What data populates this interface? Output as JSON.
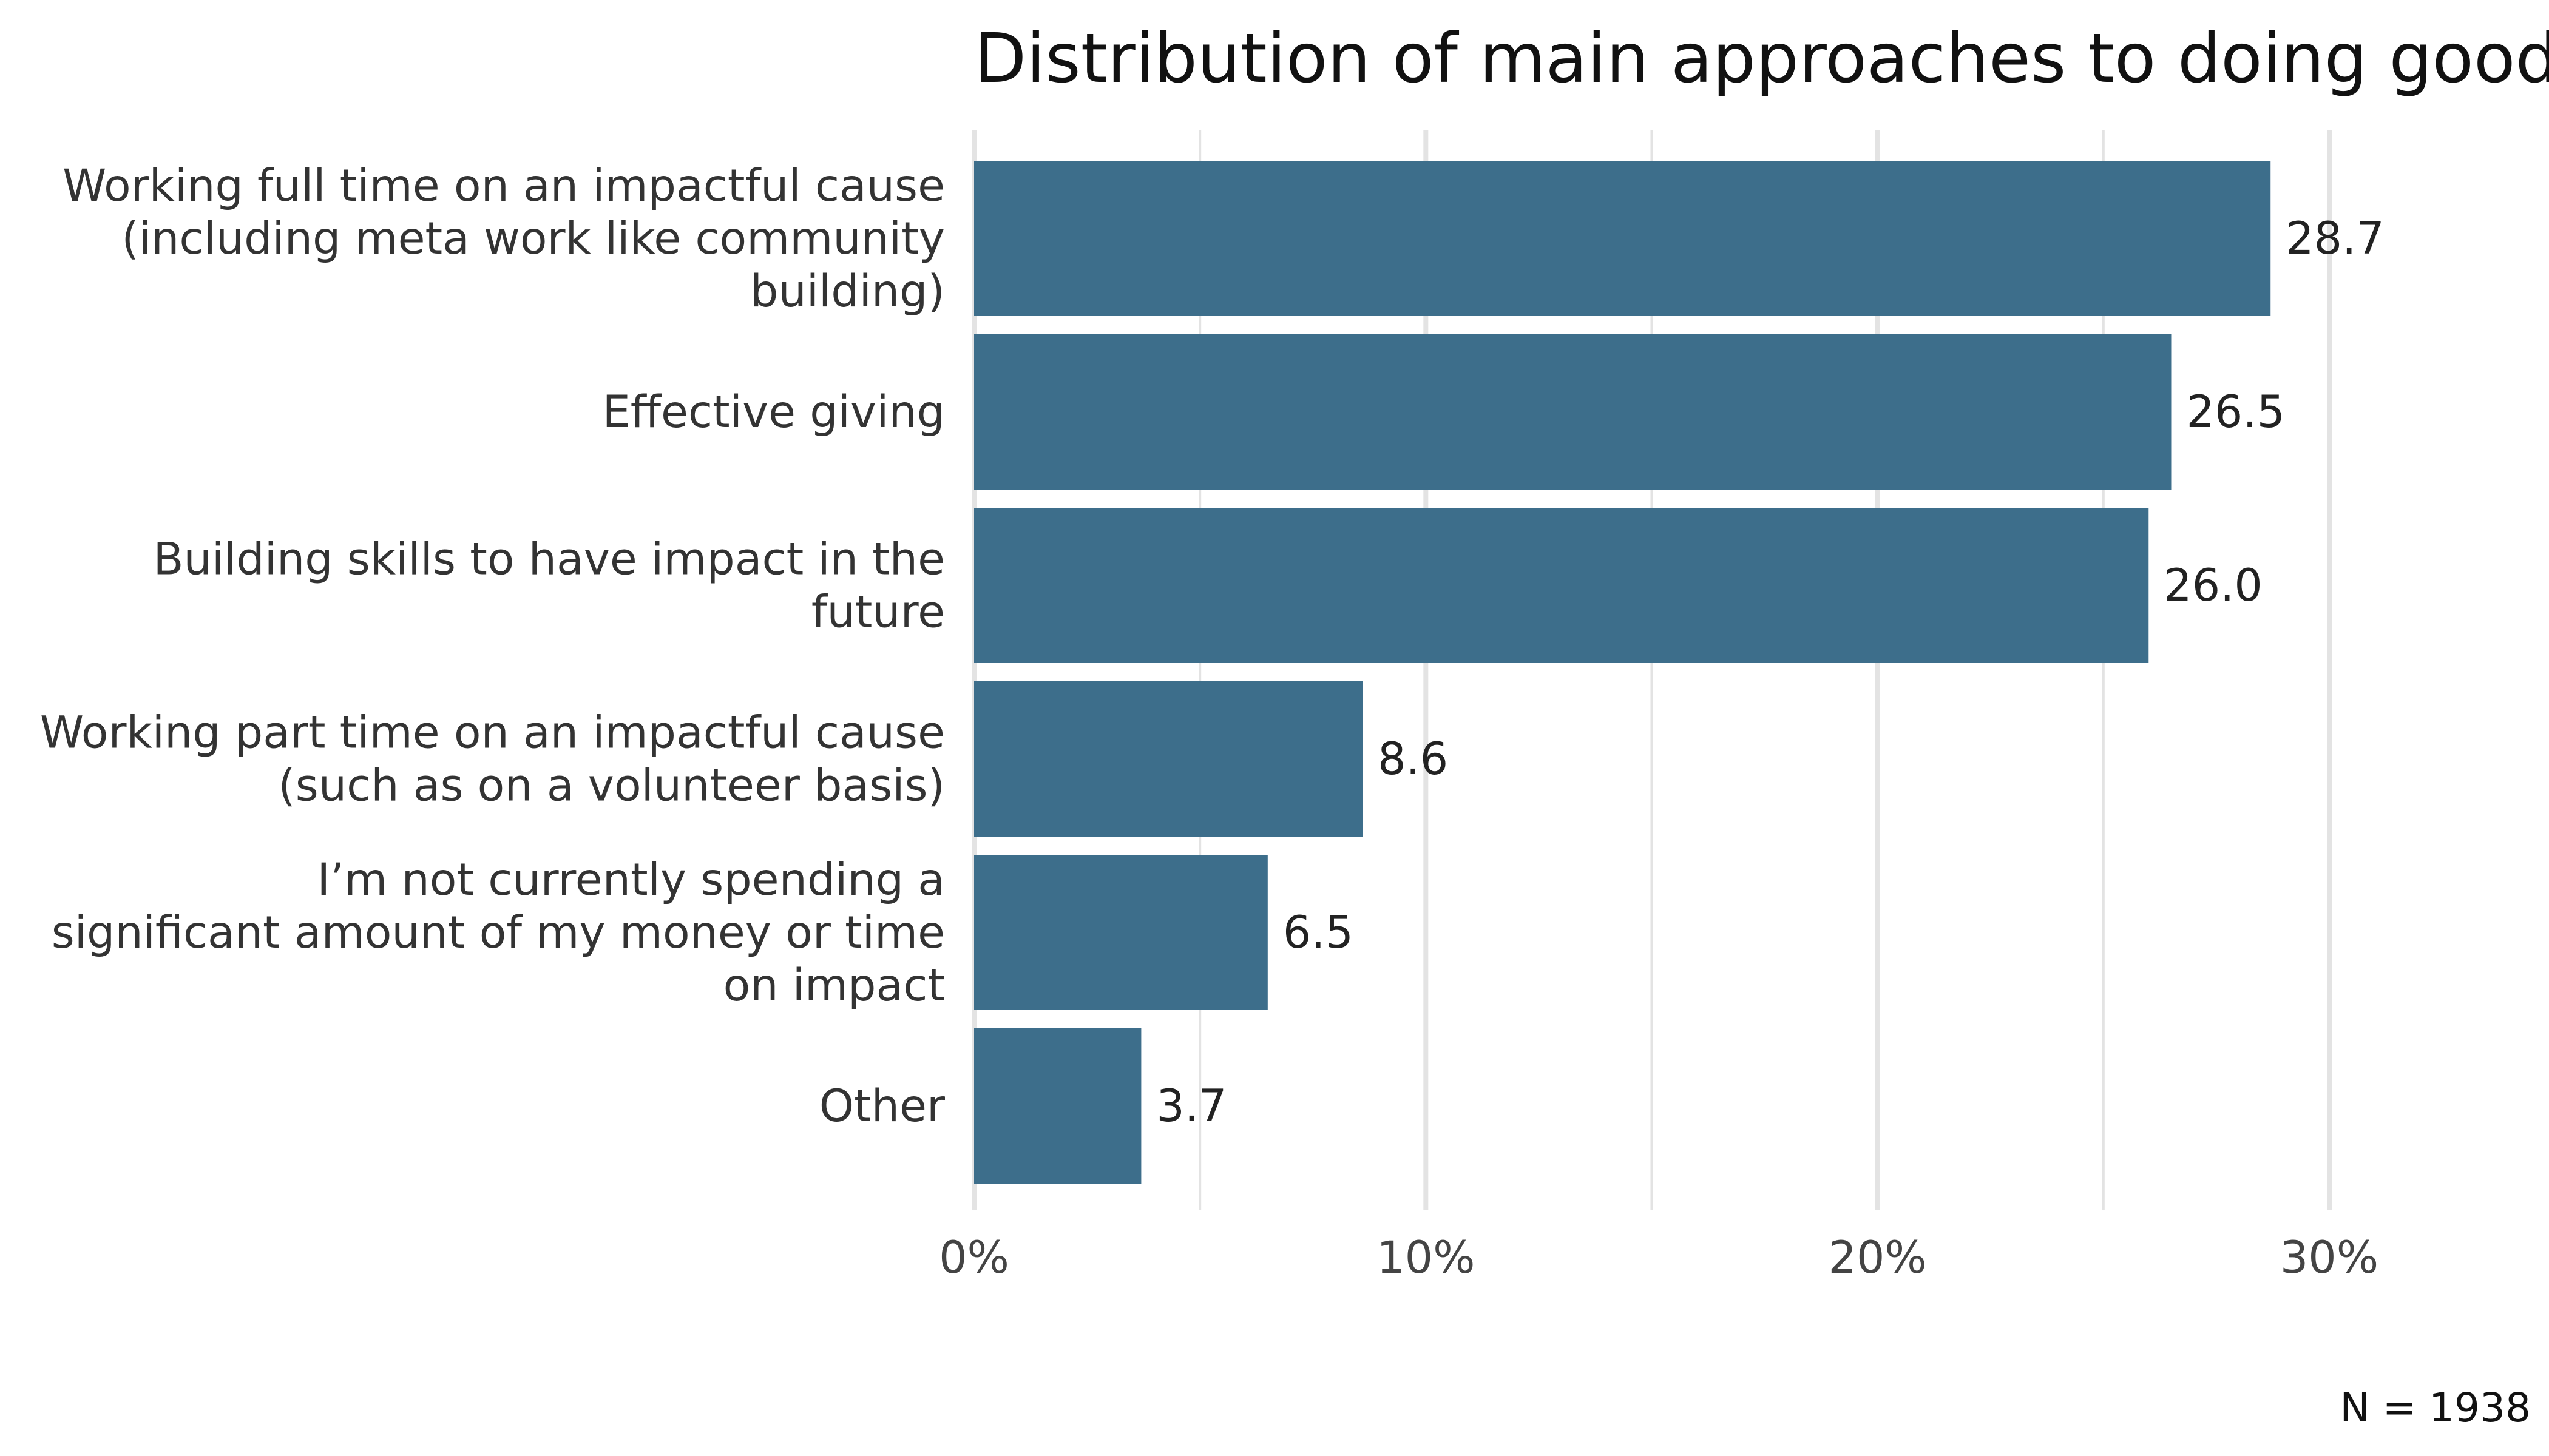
{
  "chart_data": {
    "type": "bar",
    "orientation": "horizontal",
    "title": "Distribution of main approaches to doing good",
    "categories": [
      [
        "Working full time on an impactful cause",
        "(including meta work like community",
        "building)"
      ],
      [
        "Effective giving"
      ],
      [
        "Building skills to have impact in the",
        "future"
      ],
      [
        "Working part time on an impactful cause",
        "(such as on a volunteer basis)"
      ],
      [
        "I’m not currently spending a",
        "significant amount of my money or time",
        "on impact"
      ],
      [
        "Other"
      ]
    ],
    "values": [
      28.7,
      26.5,
      26.0,
      8.6,
      6.5,
      3.7
    ],
    "value_labels": [
      "28.7",
      "26.5",
      "26.0",
      "8.6",
      "6.5",
      "3.7"
    ],
    "xlim": [
      0,
      30
    ],
    "major_ticks": [
      0,
      10,
      20,
      30
    ],
    "tick_labels": [
      "0%",
      "10%",
      "20%",
      "30%"
    ],
    "minor_gridlines": [
      5,
      15,
      25
    ],
    "xlabel": "",
    "ylabel": "",
    "bar_color": "#3d6e8b",
    "grid_color": "#e3e3e3",
    "note": "N = 1938"
  }
}
